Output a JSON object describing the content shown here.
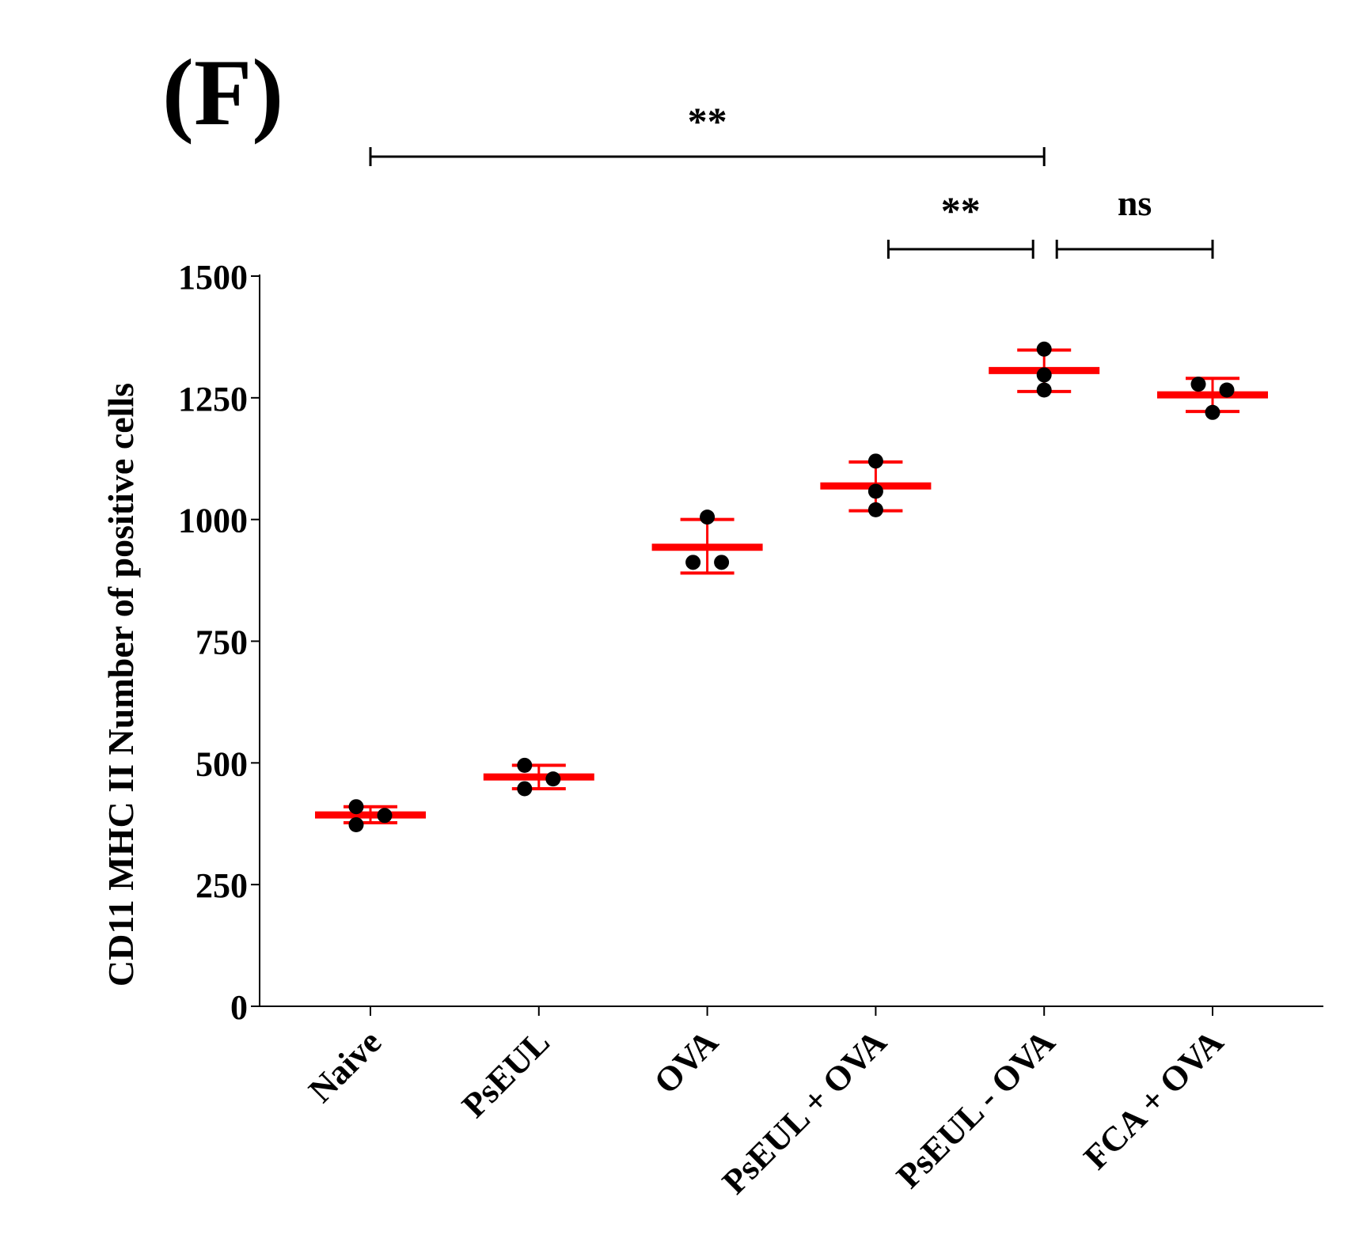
{
  "panel_label": "(F)",
  "colors": {
    "mean": "#ff0000",
    "point": "#000000",
    "axis": "#000000"
  },
  "chart_data": {
    "type": "scatter",
    "title": "",
    "xlabel": "",
    "ylabel": "CD11 MHC II Number of positive cells",
    "ylim": [
      0,
      1500
    ],
    "yticks": [
      "0",
      "250",
      "500",
      "750",
      "1000",
      "1250",
      "1500"
    ],
    "ytick_values": [
      0,
      250,
      500,
      750,
      1000,
      1250,
      1500
    ],
    "categories": [
      "Naive",
      "PsEUL",
      "OVA",
      "PsEUL + OVA",
      "PsEUL - OVA",
      "FCA + OVA"
    ],
    "points": [
      [
        410,
        373,
        392
      ],
      [
        495,
        447,
        467
      ],
      [
        1005,
        912,
        912
      ],
      [
        1120,
        1058,
        1020
      ],
      [
        1350,
        1297,
        1266
      ],
      [
        1278,
        1266,
        1220
      ]
    ],
    "means": [
      393,
      471,
      943,
      1069,
      1306,
      1256
    ],
    "error_low": [
      377,
      447,
      890,
      1018,
      1263,
      1222
    ],
    "error_high": [
      410,
      495,
      1000,
      1118,
      1348,
      1290
    ],
    "significance": [
      {
        "from": 0,
        "to": 4,
        "label": "**"
      },
      {
        "from": 3,
        "to": 4,
        "label": "**"
      },
      {
        "from": 4,
        "to": 5,
        "label": "ns"
      }
    ]
  }
}
